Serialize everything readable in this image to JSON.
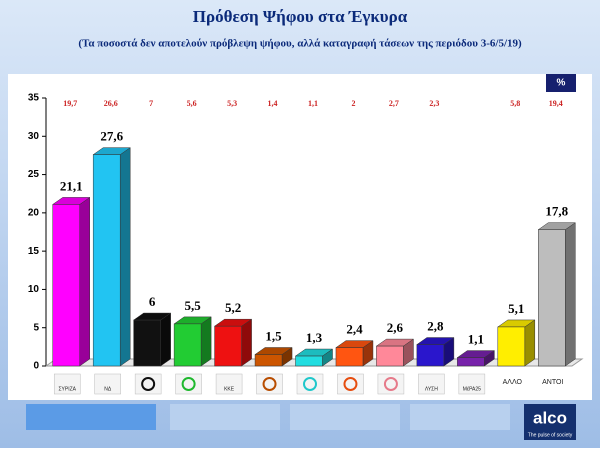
{
  "chart_data": {
    "type": "bar3d",
    "title": "Πρόθεση Ψήφου στα Έγκυρα",
    "subtitle": "(Τα ποσοστά δεν αποτελούν πρόβλεψη ψήφου, αλλά καταγραφή τάσεων της περιόδου 3-6/5/19)",
    "unit_badge": "%",
    "categories": [
      "ΣΥΡΙΖΑ",
      "ΝΔ",
      null,
      null,
      "ΚΚΕ",
      null,
      null,
      null,
      null,
      "ΛΥΣΗ",
      "ΜέΡΑ25",
      "ΑΛΛΟ",
      "ΑΝΤΟΙ"
    ],
    "values": [
      21.1,
      27.6,
      6,
      5.5,
      5.2,
      1.5,
      1.3,
      2.4,
      2.6,
      2.8,
      1.1,
      5.1,
      17.8
    ],
    "value_labels": [
      "21,1",
      "27,6",
      "6",
      "5,5",
      "5,2",
      "1,5",
      "1,3",
      "2,4",
      "2,6",
      "2,8",
      "1,1",
      "5,1",
      "17,8"
    ],
    "previous_values": [
      19.7,
      26.6,
      7,
      5.6,
      5.3,
      1.4,
      1.1,
      2,
      2.7,
      2.3,
      null,
      5.8,
      19.4
    ],
    "previous_value_labels": [
      "19,7",
      "26,6",
      "7",
      "5,6",
      "5,3",
      "1,4",
      "1,1",
      "2",
      "2,7",
      "2,3",
      null,
      "5,8",
      "19,4"
    ],
    "colors": [
      "#ff00ff",
      "#22c4f2",
      "#111111",
      "#22cc33",
      "#ee1111",
      "#cc5500",
      "#22dde0",
      "#ff5511",
      "#ff8899",
      "#2a16cc",
      "#7722aa",
      "#ffee00",
      "#bdbdbd"
    ],
    "ylim": [
      0,
      35
    ],
    "yticks": [
      0,
      5,
      10,
      15,
      20,
      25,
      30,
      35
    ],
    "brand": "alco",
    "tagline": "The pulse of society"
  }
}
